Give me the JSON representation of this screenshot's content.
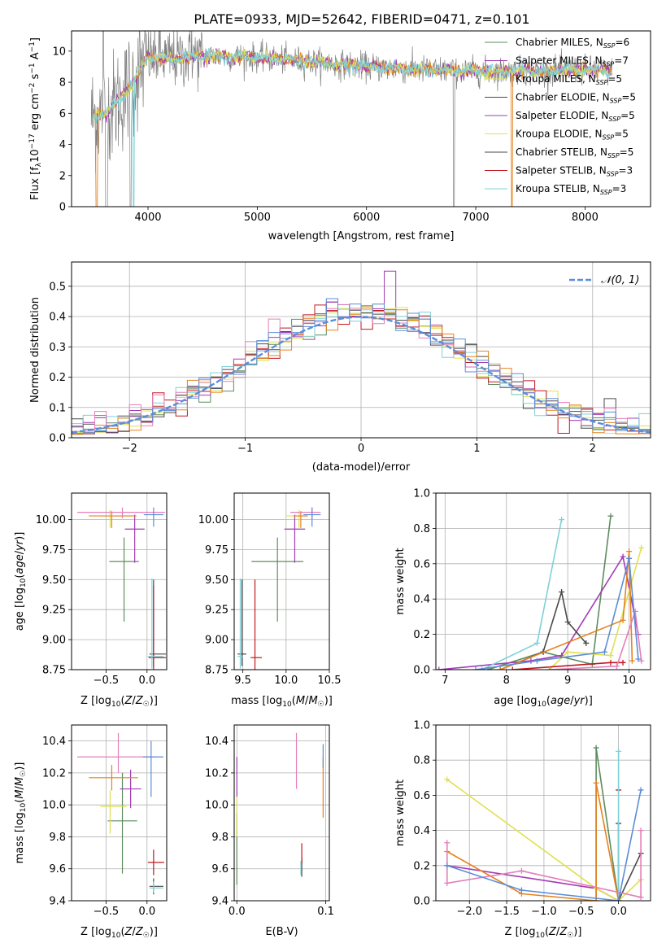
{
  "figure": {
    "title": "PLATE=0933, MJD=52642, FIBERID=0471, z=0.101"
  },
  "colors": {
    "s1": "#5e8c5e",
    "s2": "#a33cb5",
    "s3": "#e0e050",
    "s4": "#4a4a4a",
    "s5": "#c01820",
    "s6": "#7fd0d8",
    "s7": "#e6821e",
    "s8": "#e37fb8",
    "s9": "#5b8dd8",
    "data": "#808080",
    "normal": "#5b8dd8",
    "grid": "#b0b0b0"
  },
  "chart_data": [
    {
      "id": "spectrum",
      "type": "line",
      "title": "PLATE=0933, MJD=52642, FIBERID=0471, z=0.101",
      "xlabel": "wavelength [Angstrom, rest frame]",
      "ylabel": "Flux [f",
      "xlim": [
        3300,
        8600
      ],
      "ylim": [
        0,
        11.3
      ],
      "xticks": [
        "4000",
        "5000",
        "6000",
        "7000",
        "8000"
      ],
      "yticks": [
        "0",
        "2",
        "4",
        "6",
        "8",
        "10"
      ],
      "legend_position": "top-right",
      "legend": [
        {
          "label": "Chabrier MILES, N_SSP=6",
          "ssp": "6",
          "color": "s1"
        },
        {
          "label": "Salpeter MILES, N_SSP=7",
          "ssp": "7",
          "color": "s2"
        },
        {
          "label": "Kroupa MILES, N_SSP=5",
          "ssp": "5",
          "color": "s3"
        },
        {
          "label": "Chabrier ELODIE, N_SSP=5",
          "ssp": "5",
          "color": "s4"
        },
        {
          "label": "Salpeter ELODIE, N_SSP=5",
          "ssp": "5",
          "color": "s2"
        },
        {
          "label": "Kroupa ELODIE, N_SSP=5",
          "ssp": "5",
          "color": "s3"
        },
        {
          "label": "Chabrier STELIB, N_SSP=5",
          "ssp": "5",
          "color": "s4"
        },
        {
          "label": "Salpeter STELIB, N_SSP=3",
          "ssp": "3",
          "color": "s5"
        },
        {
          "label": "Kroupa STELIB, N_SSP=3",
          "ssp": "3",
          "color": "s6"
        }
      ],
      "spectrum_profile": {
        "wavelength": [
          3480,
          3600,
          3700,
          3800,
          3900,
          4000,
          4200,
          4500,
          5000,
          5500,
          6000,
          6500,
          7000,
          7500,
          8000,
          8250
        ],
        "flux": [
          5.8,
          6.0,
          6.6,
          7.4,
          8.5,
          9.6,
          9.5,
          9.7,
          9.6,
          9.3,
          9.0,
          8.8,
          8.7,
          8.7,
          8.8,
          8.7
        ]
      }
    },
    {
      "id": "residuals",
      "type": "histogram",
      "xlabel": "(data-model)/error",
      "ylabel": "Normed distribution",
      "xlim": [
        -2.5,
        2.5
      ],
      "ylim": [
        0,
        0.58
      ],
      "xticks": [
        "−2",
        "−1",
        "0",
        "1",
        "2"
      ],
      "yticks": [
        "0.0",
        "0.1",
        "0.2",
        "0.3",
        "0.4",
        "0.5"
      ],
      "legend": [
        {
          "label": "𝒩(0, 1)",
          "color": "normal",
          "style": "dashed"
        }
      ],
      "bin_width": 0.1,
      "series_colors": [
        "s1",
        "s2",
        "s3",
        "s4",
        "s5",
        "s6",
        "s7",
        "s8",
        "s9"
      ]
    },
    {
      "id": "age-vs-Z",
      "type": "errorbar",
      "xlabel": "Z [log10(Z/Z☉)]",
      "ylabel": "age  [log10(age/yr)]",
      "xlim": [
        -0.92,
        0.24
      ],
      "ylim": [
        8.75,
        10.22
      ],
      "xticks": [
        "−0.5",
        "0.0"
      ],
      "yticks": [
        "8.75",
        "9.00",
        "9.25",
        "9.50",
        "9.75",
        "10.00"
      ],
      "points": [
        {
          "x": -0.28,
          "xerr": [
            0.18,
            0.18
          ],
          "y": 9.65,
          "yerr": [
            0.5,
            0.2
          ],
          "color": "s1"
        },
        {
          "x": -0.15,
          "xerr": [
            0.12,
            0.12
          ],
          "y": 9.92,
          "yerr": [
            0.28,
            0.12
          ],
          "color": "s2"
        },
        {
          "x": -0.45,
          "xerr": [
            0.12,
            0.25
          ],
          "y": 10.03,
          "yerr": [
            0.1,
            0.05
          ],
          "color": "s3"
        },
        {
          "x": 0.08,
          "xerr": [
            0.05,
            0.15
          ],
          "y": 8.88,
          "yerr": [
            0.1,
            0.62
          ],
          "color": "s4"
        },
        {
          "x": 0.08,
          "xerr": [
            0.06,
            0.15
          ],
          "y": 8.85,
          "yerr": [
            0.1,
            0.6
          ],
          "color": "s5"
        },
        {
          "x": 0.06,
          "xerr": [
            0.05,
            0.14
          ],
          "y": 8.86,
          "yerr": [
            0.1,
            0.65
          ],
          "color": "s6"
        },
        {
          "x": -0.43,
          "xerr": [
            0.28,
            0.3
          ],
          "y": 10.03,
          "yerr": [
            0.1,
            0.04
          ],
          "color": "s7"
        },
        {
          "x": -0.3,
          "xerr": [
            0.55,
            0.52
          ],
          "y": 10.06,
          "yerr": [
            0.05,
            0.04
          ],
          "color": "s8"
        },
        {
          "x": 0.08,
          "xerr": [
            0.12,
            0.12
          ],
          "y": 10.04,
          "yerr": [
            0.1,
            0.06
          ],
          "color": "s9"
        }
      ]
    },
    {
      "id": "age-vs-mass",
      "type": "errorbar",
      "xlabel": "mass [log10(M/M☉)]",
      "ylabel": "",
      "xlim": [
        9.4,
        10.5
      ],
      "ylim": [
        8.75,
        10.22
      ],
      "xticks": [
        "9.5",
        "10.0",
        "10.5"
      ],
      "yticks": [
        "8.75",
        "9.00",
        "9.25",
        "9.50",
        "9.75",
        "10.00"
      ],
      "points": [
        {
          "x": 9.9,
          "xerr": [
            0.3,
            0.3
          ],
          "y": 9.65,
          "yerr": [
            0.5,
            0.2
          ],
          "color": "s1"
        },
        {
          "x": 10.1,
          "xerr": [
            0.12,
            0.12
          ],
          "y": 9.92,
          "yerr": [
            0.28,
            0.12
          ],
          "color": "s2"
        },
        {
          "x": 10.15,
          "xerr": [
            0.15,
            0.1
          ],
          "y": 10.03,
          "yerr": [
            0.1,
            0.05
          ],
          "color": "s3"
        },
        {
          "x": 9.49,
          "xerr": [
            0.05,
            0.05
          ],
          "y": 8.88,
          "yerr": [
            0.1,
            0.62
          ],
          "color": "s4"
        },
        {
          "x": 9.64,
          "xerr": [
            0.05,
            0.08
          ],
          "y": 8.85,
          "yerr": [
            0.1,
            0.65
          ],
          "color": "s5"
        },
        {
          "x": 9.47,
          "xerr": [
            0.03,
            0.03
          ],
          "y": 8.86,
          "yerr": [
            0.1,
            0.65
          ],
          "color": "s6"
        },
        {
          "x": 10.17,
          "xerr": [
            0.08,
            0.08
          ],
          "y": 10.03,
          "yerr": [
            0.1,
            0.04
          ],
          "color": "s7"
        },
        {
          "x": 10.3,
          "xerr": [
            0.25,
            0.1
          ],
          "y": 10.06,
          "yerr": [
            0.05,
            0.04
          ],
          "color": "s8"
        },
        {
          "x": 10.3,
          "xerr": [
            0.1,
            0.1
          ],
          "y": 10.04,
          "yerr": [
            0.1,
            0.06
          ],
          "color": "s9"
        }
      ]
    },
    {
      "id": "mass-vs-Z",
      "type": "errorbar",
      "xlabel": "Z [log10(Z/Z☉)]",
      "ylabel": "mass [log10(M/M☉)]",
      "xlim": [
        -0.92,
        0.24
      ],
      "ylim": [
        9.4,
        10.5
      ],
      "xticks": [
        "−0.5",
        "0.0"
      ],
      "yticks": [
        "9.4",
        "9.6",
        "9.8",
        "10.0",
        "10.2",
        "10.4"
      ],
      "points": [
        {
          "x": -0.3,
          "xerr": [
            0.18,
            0.18
          ],
          "y": 9.9,
          "yerr": [
            0.33,
            0.3
          ],
          "color": "s1"
        },
        {
          "x": -0.2,
          "xerr": [
            0.13,
            0.13
          ],
          "y": 10.1,
          "yerr": [
            0.12,
            0.12
          ],
          "color": "s2"
        },
        {
          "x": -0.45,
          "xerr": [
            0.12,
            0.2
          ],
          "y": 9.99,
          "yerr": [
            0.17,
            0.1
          ],
          "color": "s3"
        },
        {
          "x": 0.08,
          "xerr": [
            0.05,
            0.12
          ],
          "y": 9.49,
          "yerr": [
            0.05,
            0.05
          ],
          "color": "s4"
        },
        {
          "x": 0.08,
          "xerr": [
            0.07,
            0.13
          ],
          "y": 9.64,
          "yerr": [
            0.08,
            0.08
          ],
          "color": "s5"
        },
        {
          "x": 0.08,
          "xerr": [
            0.05,
            0.12
          ],
          "y": 9.48,
          "yerr": [
            0.03,
            0.04
          ],
          "color": "s6"
        },
        {
          "x": -0.43,
          "xerr": [
            0.28,
            0.32
          ],
          "y": 10.17,
          "yerr": [
            0.08,
            0.08
          ],
          "color": "s7"
        },
        {
          "x": -0.35,
          "xerr": [
            0.5,
            0.45
          ],
          "y": 10.3,
          "yerr": [
            0.1,
            0.15
          ],
          "color": "s8"
        },
        {
          "x": 0.05,
          "xerr": [
            0.1,
            0.15
          ],
          "y": 10.3,
          "yerr": [
            0.25,
            0.1
          ],
          "color": "s9"
        }
      ]
    },
    {
      "id": "mass-vs-ebv",
      "type": "errorbar",
      "xlabel": "E(B-V)",
      "ylabel": "",
      "xlim": [
        -0.003,
        0.104
      ],
      "ylim": [
        9.4,
        10.5
      ],
      "xticks": [
        "0.0",
        "0.1"
      ],
      "yticks": [
        "9.4",
        "9.6",
        "9.8",
        "10.0",
        "10.2",
        "10.4"
      ],
      "points": [
        {
          "x": 0.0,
          "yerr": [
            0.25,
            0.2
          ],
          "y": 9.75,
          "color": "s1"
        },
        {
          "x": 0.0,
          "yerr": [
            0.1,
            0.15
          ],
          "y": 10.15,
          "color": "s2"
        },
        {
          "x": 0.0,
          "yerr": [
            0.15,
            0.1
          ],
          "y": 9.95,
          "color": "s3"
        },
        {
          "x": 0.073,
          "yerr": [
            0.05,
            0.07
          ],
          "y": 9.6,
          "color": "s4"
        },
        {
          "x": 0.073,
          "yerr": [
            0.05,
            0.08
          ],
          "y": 9.68,
          "color": "s5"
        },
        {
          "x": 0.072,
          "yerr": [
            0.04,
            0.05
          ],
          "y": 9.6,
          "color": "s6"
        },
        {
          "x": 0.097,
          "yerr": [
            0.18,
            0.2
          ],
          "y": 10.1,
          "color": "s7"
        },
        {
          "x": 0.067,
          "yerr": [
            0.2,
            0.15
          ],
          "y": 10.3,
          "color": "s8"
        },
        {
          "x": 0.097,
          "yerr": [
            0.05,
            0.1
          ],
          "y": 10.28,
          "color": "s9"
        }
      ]
    },
    {
      "id": "weight-vs-age",
      "type": "line",
      "xlabel": "age  [log10(age/yr)]",
      "ylabel": "mass weight",
      "xlim": [
        6.85,
        10.35
      ],
      "ylim": [
        0,
        1
      ],
      "xticks": [
        "7",
        "8",
        "9",
        "10"
      ],
      "yticks": [
        "0.0",
        "0.2",
        "0.4",
        "0.6",
        "0.8",
        "1.0"
      ],
      "series": [
        {
          "color": "s1",
          "x": [
            7.7,
            8.6,
            9.4,
            9.7
          ],
          "y": [
            0.0,
            0.1,
            0.03,
            0.87
          ]
        },
        {
          "color": "s2",
          "x": [
            6.9,
            8.4,
            8.9,
            9.9,
            10.15
          ],
          "y": [
            0.0,
            0.05,
            0.08,
            0.64,
            0.2
          ]
        },
        {
          "color": "s3",
          "x": [
            8.7,
            9.0,
            9.7,
            10.2
          ],
          "y": [
            0.0,
            0.1,
            0.08,
            0.69
          ]
        },
        {
          "color": "s4",
          "x": [
            7.9,
            8.6,
            8.9,
            9.0,
            9.3
          ],
          "y": [
            0.0,
            0.1,
            0.44,
            0.27,
            0.15
          ]
        },
        {
          "color": "s5",
          "x": [
            8.1,
            9.7,
            9.9
          ],
          "y": [
            0.0,
            0.04,
            0.04
          ]
        },
        {
          "color": "s6",
          "x": [
            7.6,
            8.5,
            8.9
          ],
          "y": [
            0.0,
            0.15,
            0.85
          ]
        },
        {
          "color": "s7",
          "x": [
            7.9,
            9.9,
            10.0,
            10.05
          ],
          "y": [
            0.0,
            0.28,
            0.67,
            0.05
          ]
        },
        {
          "color": "s8",
          "x": [
            8.7,
            9.8,
            10.1,
            10.2
          ],
          "y": [
            0.0,
            0.02,
            0.33,
            0.05
          ]
        },
        {
          "color": "s9",
          "x": [
            7.5,
            8.5,
            9.6,
            10.0,
            10.15
          ],
          "y": [
            0.0,
            0.05,
            0.1,
            0.63,
            0.06
          ]
        }
      ]
    },
    {
      "id": "weight-vs-Z",
      "type": "line",
      "xlabel": "Z [log10(Z/Z☉)]",
      "ylabel": "mass weight",
      "xlim": [
        -2.45,
        0.43
      ],
      "ylim": [
        0,
        1
      ],
      "xticks": [
        "−2.0",
        "−1.5",
        "−1.0",
        "−0.5",
        "0.0"
      ],
      "yticks": [
        "0.0",
        "0.2",
        "0.4",
        "0.6",
        "0.8",
        "1.0"
      ],
      "series": [
        {
          "color": "s1",
          "x": [
            -0.3,
            -0.3,
            0.0
          ],
          "y": [
            0.0,
            0.87,
            0.0
          ]
        },
        {
          "color": "s2",
          "x": [
            -2.3,
            -0.3,
            0.0
          ],
          "y": [
            0.2,
            0.07,
            0.0
          ]
        },
        {
          "color": "s3",
          "x": [
            -2.3,
            -0.3,
            0.0,
            0.3
          ],
          "y": [
            0.69,
            0.07,
            0.0,
            0.12
          ]
        },
        {
          "color": "s4",
          "x": [
            0.0,
            0.0,
            0.3
          ],
          "y": [
            0.44,
            0.0,
            0.27
          ]
        },
        {
          "color": "s5",
          "x": [
            0.0
          ],
          "y": [
            0.63
          ]
        },
        {
          "color": "s6",
          "x": [
            0.0,
            0.0
          ],
          "y": [
            0.85,
            0.0
          ]
        },
        {
          "color": "s7",
          "x": [
            -2.3,
            -1.3,
            -0.3,
            -0.3,
            0.0
          ],
          "y": [
            0.28,
            0.04,
            0.0,
            0.67,
            0.0
          ]
        },
        {
          "color": "s8",
          "x": [
            -2.3,
            -2.3,
            -1.3,
            0.3,
            0.3
          ],
          "y": [
            0.33,
            0.1,
            0.17,
            0.02,
            0.4
          ]
        },
        {
          "color": "s9",
          "x": [
            -2.3,
            -1.3,
            0.0,
            0.3
          ],
          "y": [
            0.2,
            0.06,
            0.0,
            0.63
          ]
        }
      ]
    }
  ]
}
